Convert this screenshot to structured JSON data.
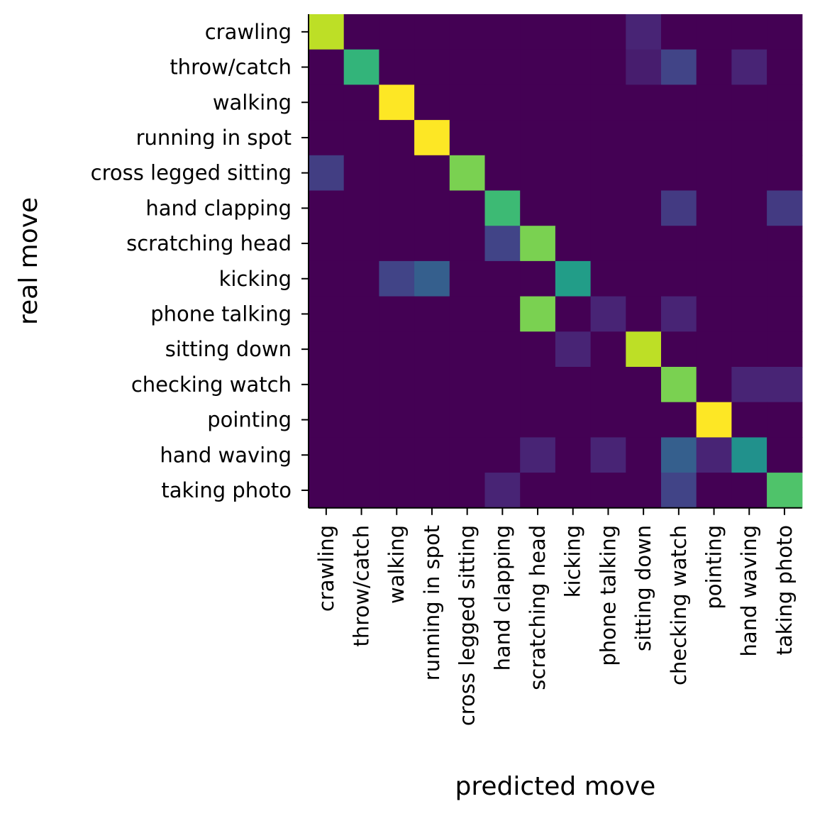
{
  "chart_data": {
    "type": "heatmap",
    "xlabel": "predicted move",
    "ylabel": "real move",
    "x_categories": [
      "crawling",
      "throw/catch",
      "walking",
      "running in spot",
      "cross legged sitting",
      "hand clapping",
      "scratching head",
      "kicking",
      "phone talking",
      "sitting down",
      "checking watch",
      "pointing",
      "hand waving",
      "taking photo"
    ],
    "y_categories": [
      "crawling",
      "throw/catch",
      "walking",
      "running in spot",
      "cross legged sitting",
      "hand clapping",
      "scratching head",
      "kicking",
      "phone talking",
      "sitting down",
      "checking watch",
      "pointing",
      "hand waving",
      "taking photo"
    ],
    "colormap": "viridis",
    "vmin": 0,
    "vmax": 1,
    "values": [
      [
        0.9,
        0,
        0,
        0,
        0,
        0,
        0,
        0,
        0,
        0.1,
        0,
        0,
        0,
        0
      ],
      [
        0,
        0.65,
        0,
        0,
        0,
        0,
        0,
        0,
        0,
        0.08,
        0.2,
        0,
        0.1,
        0
      ],
      [
        0,
        0,
        1.0,
        0,
        0,
        0,
        0,
        0,
        0,
        0,
        0,
        0,
        0,
        0
      ],
      [
        0,
        0,
        0,
        1.0,
        0,
        0,
        0,
        0,
        0,
        0,
        0,
        0,
        0,
        0
      ],
      [
        0.18,
        0,
        0,
        0,
        0.8,
        0,
        0,
        0,
        0,
        0,
        0,
        0,
        0,
        0
      ],
      [
        0,
        0,
        0,
        0,
        0,
        0.68,
        0,
        0,
        0,
        0,
        0.17,
        0,
        0,
        0.17
      ],
      [
        0,
        0,
        0,
        0,
        0,
        0.2,
        0.8,
        0,
        0,
        0,
        0,
        0,
        0,
        0
      ],
      [
        0,
        0,
        0.2,
        0.3,
        0,
        0,
        0,
        0.55,
        0,
        0,
        0,
        0,
        0,
        0
      ],
      [
        0,
        0,
        0,
        0,
        0,
        0,
        0.8,
        0,
        0.1,
        0,
        0.1,
        0,
        0,
        0
      ],
      [
        0,
        0,
        0,
        0,
        0,
        0,
        0,
        0.1,
        0,
        0.9,
        0,
        0,
        0,
        0
      ],
      [
        0,
        0,
        0,
        0,
        0,
        0,
        0,
        0,
        0,
        0,
        0.8,
        0,
        0.1,
        0.1
      ],
      [
        0,
        0,
        0,
        0,
        0,
        0,
        0,
        0,
        0,
        0,
        0,
        1.0,
        0,
        0
      ],
      [
        0,
        0,
        0,
        0,
        0,
        0,
        0.1,
        0,
        0.1,
        0,
        0.3,
        0.1,
        0.5,
        0
      ],
      [
        0,
        0,
        0,
        0,
        0,
        0.1,
        0,
        0,
        0,
        0,
        0.2,
        0,
        0,
        0.72
      ]
    ]
  }
}
